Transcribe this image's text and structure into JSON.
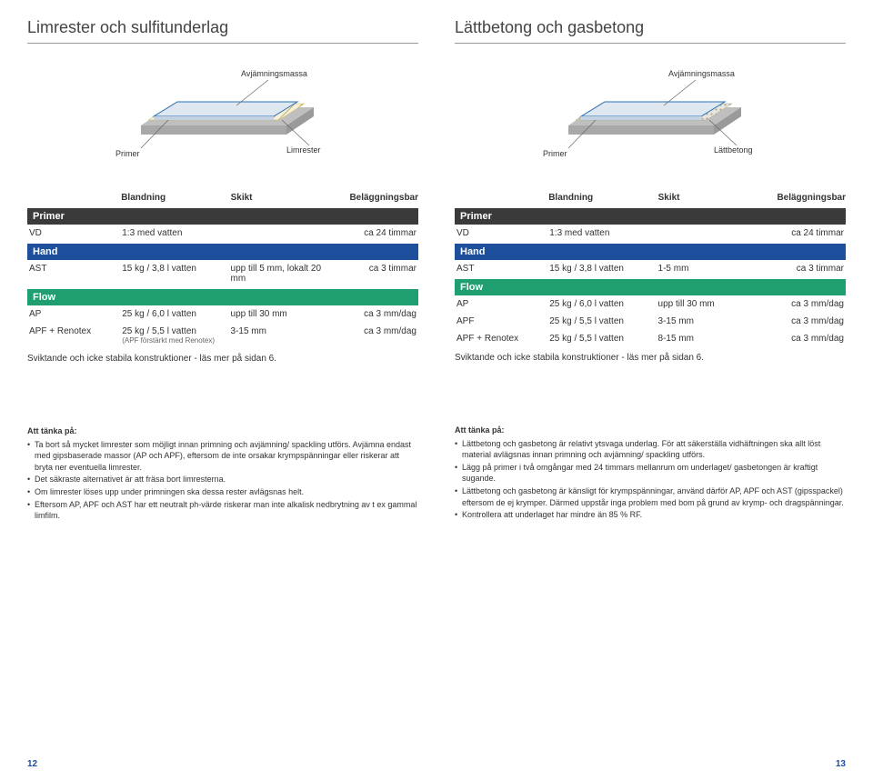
{
  "left": {
    "title": "Limrester och sulfitunderlag",
    "diagram": {
      "top_label": "Avjämningsmassa",
      "left_label": "Primer",
      "right_label": "Limrester",
      "colors": {
        "top": "#dfe8f0",
        "border": "#2a6fb5",
        "hatched_bg": "#f5f0d8",
        "hatch": "#c9b36a",
        "base": "#bfbfbf",
        "label_line": "#666666"
      }
    },
    "header": {
      "c2": "Blandning",
      "c3": "Skikt",
      "c4": "Beläggningsbar"
    },
    "sections": [
      {
        "band_label": "Primer",
        "band_color": "#3a3a3a",
        "rows": [
          {
            "c1": "VD",
            "c2": "1:3 med vatten",
            "c3": "",
            "c4": "ca 24 timmar"
          }
        ]
      },
      {
        "band_label": "Hand",
        "band_color": "#1d4f9c",
        "rows": [
          {
            "c1": "AST",
            "c2": "15 kg / 3,8 l vatten",
            "c3": "upp till 5 mm, lokalt 20 mm",
            "c4": "ca 3 timmar"
          }
        ]
      },
      {
        "band_label": "Flow",
        "band_color": "#1f9e6f",
        "rows": [
          {
            "c1": "AP",
            "c2": "25 kg / 6,0 l vatten",
            "c3": "upp till 30 mm",
            "c4": "ca 3 mm/dag"
          },
          {
            "c1": "APF + Renotex",
            "c2": "25 kg / 5,5 l vatten",
            "c2_sub": "(APF förstärkt med Renotex)",
            "c3": "3-15 mm",
            "c4": "ca 3 mm/dag"
          }
        ]
      }
    ],
    "footnote": "Sviktande och icke stabila konstruktioner - läs mer på sidan 6.",
    "tips_title": "Att tänka på:",
    "tips": [
      "Ta bort så mycket limrester som möjligt innan primning och avjämning/ spackling utförs. Avjämna endast med gipsbaserade massor (AP och APF), eftersom de inte orsakar krympspänningar eller riskerar att bryta ner eventuella limrester.",
      "Det säkraste alternativet är att fräsa bort limresterna.",
      "Om limrester löses upp under primningen ska dessa rester avlägsnas helt.",
      "Eftersom AP, APF och AST har ett neutralt ph-värde riskerar man inte alkalisk nedbrytning av t ex gammal limfilm."
    ],
    "page_num": "12"
  },
  "right": {
    "title": "Lättbetong och gasbetong",
    "diagram": {
      "top_label": "Avjämningsmassa",
      "left_label": "Primer",
      "right_label": "Lättbetong",
      "colors": {
        "top": "#dfe8f0",
        "border": "#2a6fb5",
        "dotted_bg": "#e8e6dc",
        "dots": "#a8a28c",
        "base": "#bfbfbf",
        "label_line": "#666666"
      }
    },
    "header": {
      "c2": "Blandning",
      "c3": "Skikt",
      "c4": "Beläggningsbar"
    },
    "sections": [
      {
        "band_label": "Primer",
        "band_color": "#3a3a3a",
        "rows": [
          {
            "c1": "VD",
            "c2": "1:3 med vatten",
            "c3": "",
            "c4": "ca 24 timmar"
          }
        ]
      },
      {
        "band_label": "Hand",
        "band_color": "#1d4f9c",
        "rows": [
          {
            "c1": "AST",
            "c2": "15 kg / 3,8 l vatten",
            "c3": "1-5 mm",
            "c4": "ca 3 timmar"
          }
        ]
      },
      {
        "band_label": "Flow",
        "band_color": "#1f9e6f",
        "rows": [
          {
            "c1": "AP",
            "c2": "25 kg / 6,0 l vatten",
            "c3": "upp till 30 mm",
            "c4": "ca 3 mm/dag"
          },
          {
            "c1": "APF",
            "c2": "25 kg / 5,5 l vatten",
            "c3": "3-15 mm",
            "c4": "ca 3 mm/dag"
          },
          {
            "c1": "APF + Renotex",
            "c2": "25 kg / 5,5 l vatten",
            "c3": "8-15 mm",
            "c4": "ca 3 mm/dag"
          }
        ]
      }
    ],
    "footnote": "Sviktande och icke stabila konstruktioner - läs mer på sidan 6.",
    "tips_title": "Att tänka på:",
    "tips": [
      "Lättbetong och gasbetong är relativt ytsvaga underlag. För att säkerställa vidhäftningen ska allt löst material avlägsnas innan primning och avjämning/ spackling utförs.",
      "Lägg på primer i två omgångar med 24 timmars mellanrum om underlaget/ gasbetongen är kraftigt sugande.",
      "Lättbetong och gasbetong är känsligt för krympspänningar, använd därför AP, APF och AST (gipsspackel) eftersom de ej krymper. Därmed uppstår inga problem med bom på grund av krymp- och dragspänningar.",
      "Kontrollera att underlaget har mindre än 85 % RF."
    ],
    "page_num": "13"
  }
}
